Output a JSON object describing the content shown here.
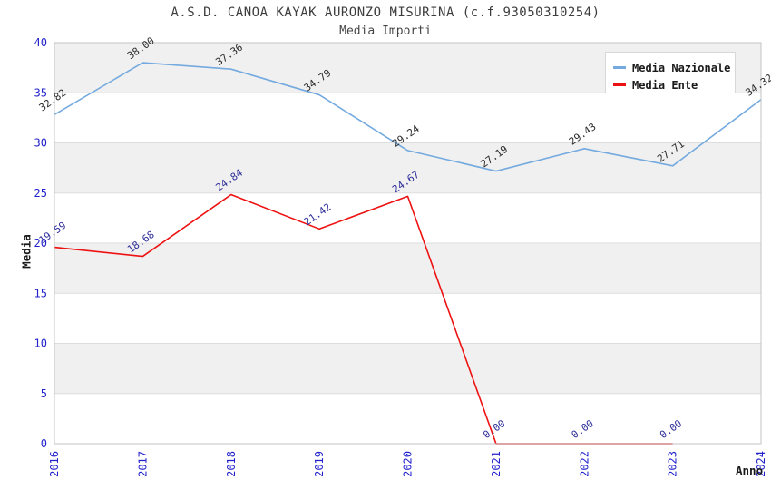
{
  "chart_data": {
    "type": "line",
    "title": "A.S.D. CANOA KAYAK AURONZO MISURINA (c.f.93050310254)",
    "subtitle": "Media Importi",
    "xlabel": "Anno",
    "ylabel": "Media",
    "categories": [
      "2016",
      "2017",
      "2018",
      "2019",
      "2020",
      "2021",
      "2022",
      "2023",
      "2024"
    ],
    "series": [
      {
        "name": "Media Nazionale",
        "color": "#74aadf",
        "label_color": "#2b2b2b",
        "values": [
          32.82,
          38.0,
          37.36,
          34.79,
          29.24,
          27.19,
          29.43,
          27.71,
          34.32
        ]
      },
      {
        "name": "Media Ente",
        "color": "#ee1111",
        "label_color": "#2e2e99",
        "values": [
          19.59,
          18.68,
          24.84,
          21.42,
          24.67,
          0.0,
          0.0,
          0.0,
          null
        ]
      }
    ],
    "ylim": [
      0,
      40
    ],
    "ytick_step": 5,
    "grid": true,
    "legend_position": "top-right",
    "label_decimals": 2,
    "styles": {
      "tick_label_color": "#2222cc",
      "band_gray": "#f0f0f0",
      "band_white": "#ffffff",
      "gridline_color": "#dddddd",
      "plot_border_color": "#c3c3c3",
      "title_color": "#3d3d3d"
    }
  }
}
